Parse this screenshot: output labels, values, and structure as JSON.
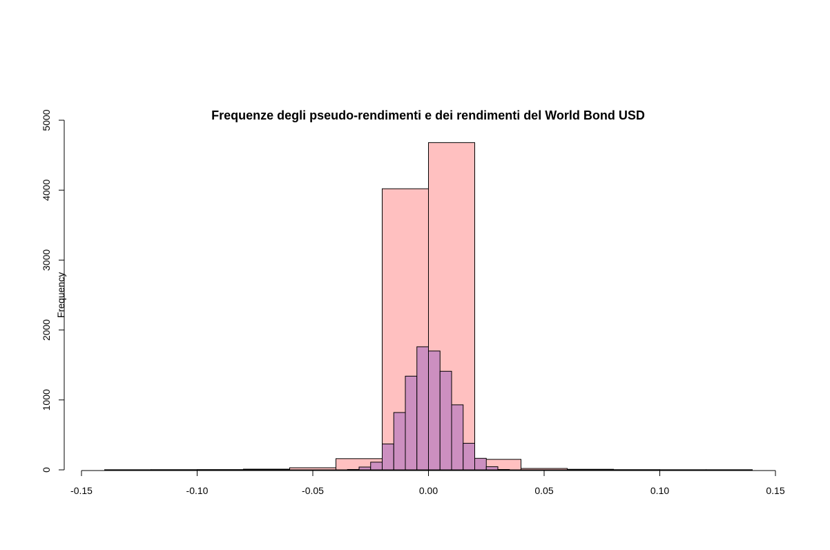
{
  "chart_data": {
    "type": "histogram",
    "title": "Frequenze degli pseudo-rendimenti e dei rendimenti del World Bond USD",
    "xlabel": "",
    "ylabel": "Frequency",
    "xlim": [
      -0.15,
      0.15
    ],
    "ylim": [
      0,
      5000
    ],
    "x_ticks": [
      "-0.15",
      "-0.10",
      "-0.05",
      "0.00",
      "0.05",
      "0.10",
      "0.15"
    ],
    "y_ticks": [
      "0",
      "1000",
      "2000",
      "3000",
      "4000",
      "5000"
    ],
    "grid": false,
    "legend": "none",
    "series": [
      {
        "color": "#ffc0c0",
        "bins": [
          {
            "x0": -0.14,
            "x1": -0.12,
            "count": 2
          },
          {
            "x0": -0.12,
            "x1": -0.1,
            "count": 3
          },
          {
            "x0": -0.1,
            "x1": -0.08,
            "count": 4
          },
          {
            "x0": -0.08,
            "x1": -0.06,
            "count": 10
          },
          {
            "x0": -0.06,
            "x1": -0.04,
            "count": 30
          },
          {
            "x0": -0.04,
            "x1": -0.02,
            "count": 160
          },
          {
            "x0": -0.02,
            "x1": 0.0,
            "count": 4020
          },
          {
            "x0": 0.0,
            "x1": 0.02,
            "count": 4680
          },
          {
            "x0": 0.02,
            "x1": 0.04,
            "count": 150
          },
          {
            "x0": 0.04,
            "x1": 0.06,
            "count": 20
          },
          {
            "x0": 0.06,
            "x1": 0.08,
            "count": 8
          },
          {
            "x0": 0.08,
            "x1": 0.1,
            "count": 3
          },
          {
            "x0": 0.1,
            "x1": 0.12,
            "count": 2
          },
          {
            "x0": 0.12,
            "x1": 0.14,
            "count": 2
          }
        ]
      },
      {
        "color": "#cc8fc0",
        "bins": [
          {
            "x0": -0.035,
            "x1": -0.03,
            "count": 5
          },
          {
            "x0": -0.03,
            "x1": -0.025,
            "count": 40
          },
          {
            "x0": -0.025,
            "x1": -0.02,
            "count": 110
          },
          {
            "x0": -0.02,
            "x1": -0.015,
            "count": 370
          },
          {
            "x0": -0.015,
            "x1": -0.01,
            "count": 820
          },
          {
            "x0": -0.01,
            "x1": -0.005,
            "count": 1340
          },
          {
            "x0": -0.005,
            "x1": 0.0,
            "count": 1760
          },
          {
            "x0": 0.0,
            "x1": 0.005,
            "count": 1700
          },
          {
            "x0": 0.005,
            "x1": 0.01,
            "count": 1410
          },
          {
            "x0": 0.01,
            "x1": 0.015,
            "count": 930
          },
          {
            "x0": 0.015,
            "x1": 0.02,
            "count": 380
          },
          {
            "x0": 0.02,
            "x1": 0.025,
            "count": 165
          },
          {
            "x0": 0.025,
            "x1": 0.03,
            "count": 45
          },
          {
            "x0": 0.03,
            "x1": 0.035,
            "count": 5
          }
        ]
      }
    ]
  }
}
